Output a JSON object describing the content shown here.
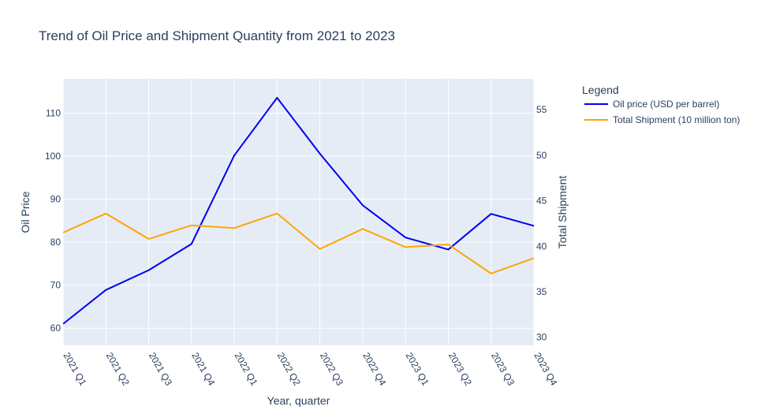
{
  "chart_data": {
    "type": "line",
    "title": "Trend of Oil Price and Shipment Quantity from 2021 to 2023",
    "xlabel": "Year, quarter",
    "ylabel": "Oil Price",
    "y2label": "Total Shipment",
    "categories": [
      "2021 Q1",
      "2021 Q2",
      "2021 Q3",
      "2021 Q4",
      "2022 Q1",
      "2022 Q2",
      "2022 Q3",
      "2022 Q4",
      "2023 Q1",
      "2023 Q2",
      "2023 Q3",
      "2023 Q4"
    ],
    "ylim": [
      56,
      118
    ],
    "y2lim": [
      29.1,
      58.4
    ],
    "yticks": [
      60,
      70,
      80,
      90,
      100,
      110
    ],
    "y2ticks": [
      30,
      35,
      40,
      45,
      50,
      55
    ],
    "legend_title": "Legend",
    "legend_position": "right",
    "grid": true,
    "series": [
      {
        "name": "Oil price (USD per barrel)",
        "axis": "y",
        "color": "#0000ee",
        "values": [
          61.0,
          68.9,
          73.5,
          79.6,
          100.2,
          113.6,
          100.6,
          88.6,
          81.1,
          78.3,
          86.6,
          83.8
        ]
      },
      {
        "name": "Total Shipment (10 million ton)",
        "axis": "y2",
        "color": "#ffa500",
        "values": [
          41.5,
          43.6,
          40.8,
          42.3,
          42.0,
          43.6,
          39.7,
          41.9,
          39.9,
          40.2,
          37.0,
          38.7
        ]
      }
    ]
  }
}
